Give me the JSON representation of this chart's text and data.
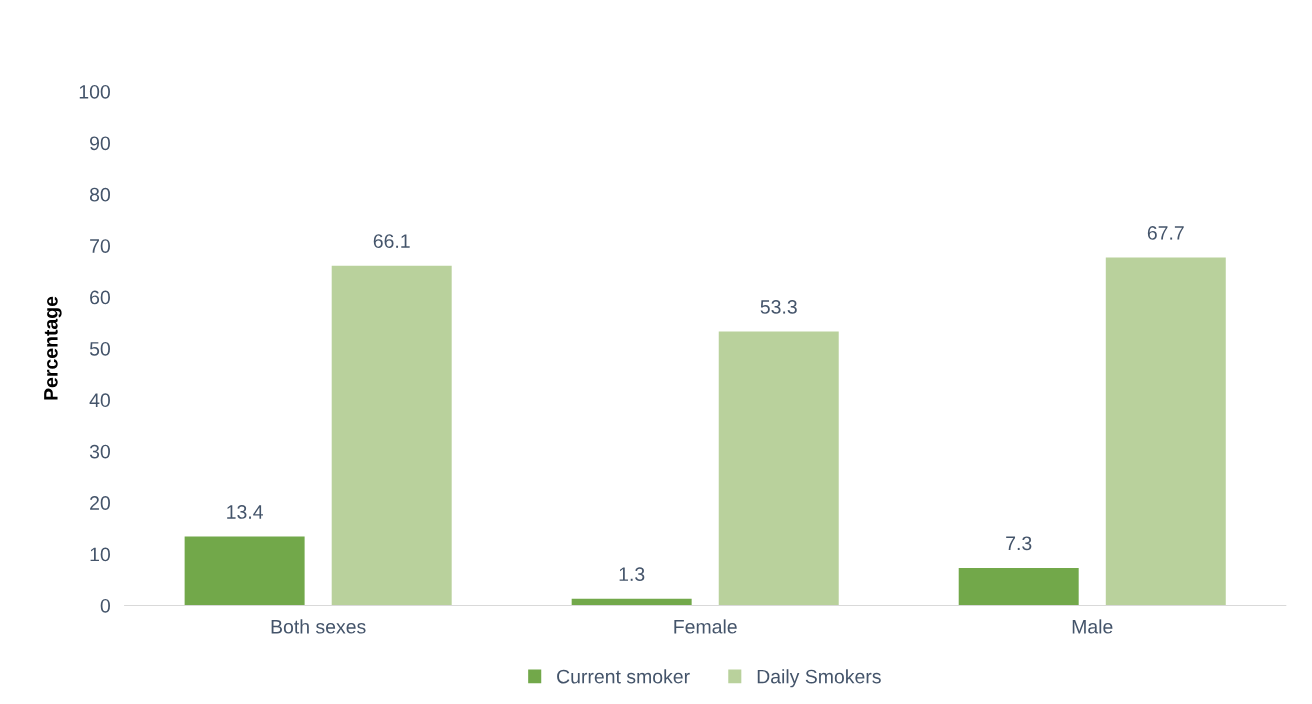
{
  "chart_data": {
    "type": "bar",
    "ylabel": "Percentage",
    "categories": [
      "Both sexes",
      "Female",
      "Male"
    ],
    "series": [
      {
        "name": "Current smoker",
        "color": "#72a84a",
        "values": [
          13.4,
          1.3,
          7.3
        ]
      },
      {
        "name": "Daily Smokers",
        "color": "#b9d19c",
        "values": [
          66.1,
          53.3,
          67.7
        ]
      }
    ],
    "ylim": [
      0,
      100
    ],
    "yticks": [
      0,
      10,
      20,
      30,
      40,
      50,
      60,
      70,
      80,
      90,
      100
    ],
    "data_labels": true,
    "grid": false,
    "legend": "bottom"
  }
}
